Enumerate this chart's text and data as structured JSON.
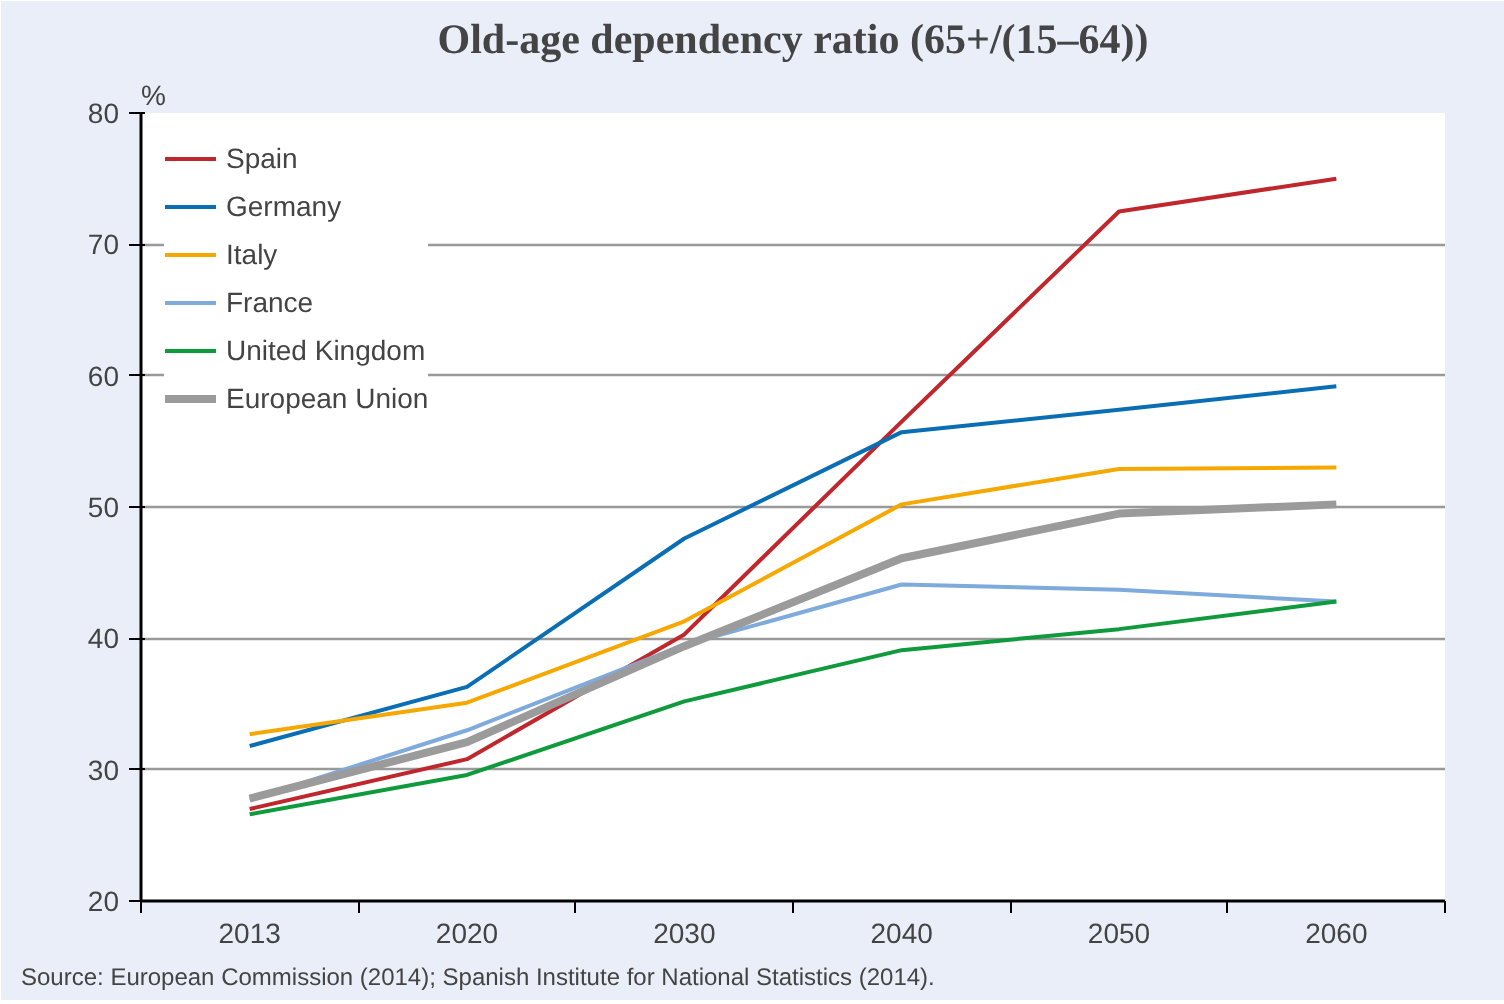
{
  "chart_data": {
    "type": "line",
    "title": "Old-age dependency ratio (65+/(15–64))",
    "ylabel": "%",
    "categories": [
      "2013",
      "2020",
      "2030",
      "2040",
      "2050",
      "2060"
    ],
    "series": [
      {
        "name": "Spain",
        "color": "#c0272d",
        "values": [
          27.0,
          30.8,
          40.3,
          56.5,
          72.5,
          75.0
        ]
      },
      {
        "name": "Germany",
        "color": "#0a6eb4",
        "values": [
          31.8,
          36.3,
          47.6,
          55.7,
          57.4,
          59.2
        ]
      },
      {
        "name": "Italy",
        "color": "#f7a800",
        "values": [
          32.7,
          35.1,
          41.3,
          50.2,
          52.9,
          53.0
        ]
      },
      {
        "name": "France",
        "color": "#7faadc",
        "values": [
          27.7,
          33.0,
          39.5,
          44.1,
          43.7,
          42.8
        ]
      },
      {
        "name": "United Kingdom",
        "color": "#0f9a3c",
        "values": [
          26.6,
          29.6,
          35.2,
          39.1,
          40.7,
          42.8
        ]
      },
      {
        "name": "European Union",
        "color": "#9b9b9b",
        "values": [
          27.8,
          32.1,
          39.4,
          46.1,
          49.5,
          50.2
        ]
      }
    ],
    "ylim": [
      20,
      80
    ],
    "yticks": [
      20,
      30,
      40,
      50,
      60,
      70,
      80
    ],
    "grid": "y",
    "legend": "top left",
    "marker": "none",
    "line_style": "solid",
    "annotations": [
      "Source: European Commission (2014); Spanish Institute for National Statistics (2014)."
    ]
  }
}
